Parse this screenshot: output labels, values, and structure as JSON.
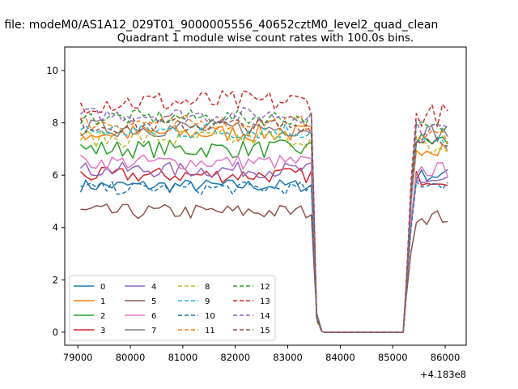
{
  "suptitle": "n file: modeM0/AS1A12_029T01_9000005556_40652cztM0_level2_quad_clean",
  "chart_data": {
    "type": "line",
    "title": "Quadrant 1 module wise count rates with 100.0s bins.",
    "xlabel": "",
    "ylabel": "",
    "x_offset_label": "+4.183e8",
    "xlim": [
      78750,
      86400
    ],
    "ylim": [
      -0.5,
      10.9
    ],
    "x_ticks": [
      79000,
      80000,
      81000,
      82000,
      83000,
      84000,
      85000,
      86000
    ],
    "y_ticks": [
      0,
      2,
      4,
      6,
      8,
      10
    ],
    "x_tick_labels": [
      "79000",
      "80000",
      "81000",
      "82000",
      "83000",
      "84000",
      "85000",
      "86000"
    ],
    "y_tick_labels": [
      "0",
      "2",
      "4",
      "6",
      "8",
      "10"
    ],
    "grid": false,
    "legend_placement": "lower-left",
    "legend_columns": 4,
    "segments": [
      [
        79050,
        83450
      ],
      [
        83550,
        85200
      ],
      [
        85300,
        86100
      ]
    ],
    "series": [
      {
        "name": "0",
        "color": "#1f77b4",
        "dash": "solid",
        "level_a": 5.6,
        "level_b": 6.0,
        "noise": 0.25,
        "dip": 0.6
      },
      {
        "name": "1",
        "color": "#ff7f0e",
        "dash": "solid",
        "level_a": 7.6,
        "level_b": 7.1,
        "noise": 0.35,
        "dip": 0.5
      },
      {
        "name": "2",
        "color": "#2ca02c",
        "dash": "solid",
        "level_a": 7.0,
        "level_b": 7.3,
        "noise": 0.35,
        "dip": 0.5
      },
      {
        "name": "3",
        "color": "#d62728",
        "dash": "solid",
        "level_a": 6.0,
        "level_b": 5.9,
        "noise": 0.3,
        "dip": 0.6
      },
      {
        "name": "4",
        "color": "#9467bd",
        "dash": "solid",
        "level_a": 6.2,
        "level_b": 5.8,
        "noise": 0.3,
        "dip": 0.6
      },
      {
        "name": "5",
        "color": "#8c564b",
        "dash": "solid",
        "level_a": 4.6,
        "level_b": 4.4,
        "noise": 0.3,
        "dip": 0.5
      },
      {
        "name": "6",
        "color": "#e377c2",
        "dash": "solid",
        "level_a": 6.5,
        "level_b": 6.2,
        "noise": 0.3,
        "dip": 0.5
      },
      {
        "name": "7",
        "color": "#7f7f7f",
        "dash": "solid",
        "level_a": 7.8,
        "level_b": 7.6,
        "noise": 0.35,
        "dip": 0.8
      },
      {
        "name": "8",
        "color": "#bcbd22",
        "dash": "dashed",
        "level_a": 7.4,
        "level_b": 7.0,
        "noise": 0.35,
        "dip": 0.5
      },
      {
        "name": "9",
        "color": "#17becf",
        "dash": "dashed",
        "level_a": 7.7,
        "level_b": 7.2,
        "noise": 0.35,
        "dip": 0.5
      },
      {
        "name": "10",
        "color": "#1f77b4",
        "dash": "dashed",
        "level_a": 5.5,
        "level_b": 5.7,
        "noise": 0.25,
        "dip": 0.5
      },
      {
        "name": "11",
        "color": "#ff7f0e",
        "dash": "dashed",
        "level_a": 8.0,
        "level_b": 7.5,
        "noise": 0.3,
        "dip": 0.5
      },
      {
        "name": "12",
        "color": "#2ca02c",
        "dash": "dashed",
        "level_a": 8.2,
        "level_b": 7.8,
        "noise": 0.3,
        "dip": 0.5
      },
      {
        "name": "13",
        "color": "#d62728",
        "dash": "dashed",
        "level_a": 8.8,
        "level_b": 8.3,
        "noise": 0.45,
        "dip": 0.6
      },
      {
        "name": "14",
        "color": "#9467bd",
        "dash": "dashed",
        "level_a": 8.3,
        "level_b": 7.8,
        "noise": 0.3,
        "dip": 0.5
      },
      {
        "name": "15",
        "color": "#8c564b",
        "dash": "dashed",
        "level_a": 7.9,
        "level_b": 7.4,
        "noise": 0.3,
        "dip": 0.5
      }
    ]
  }
}
